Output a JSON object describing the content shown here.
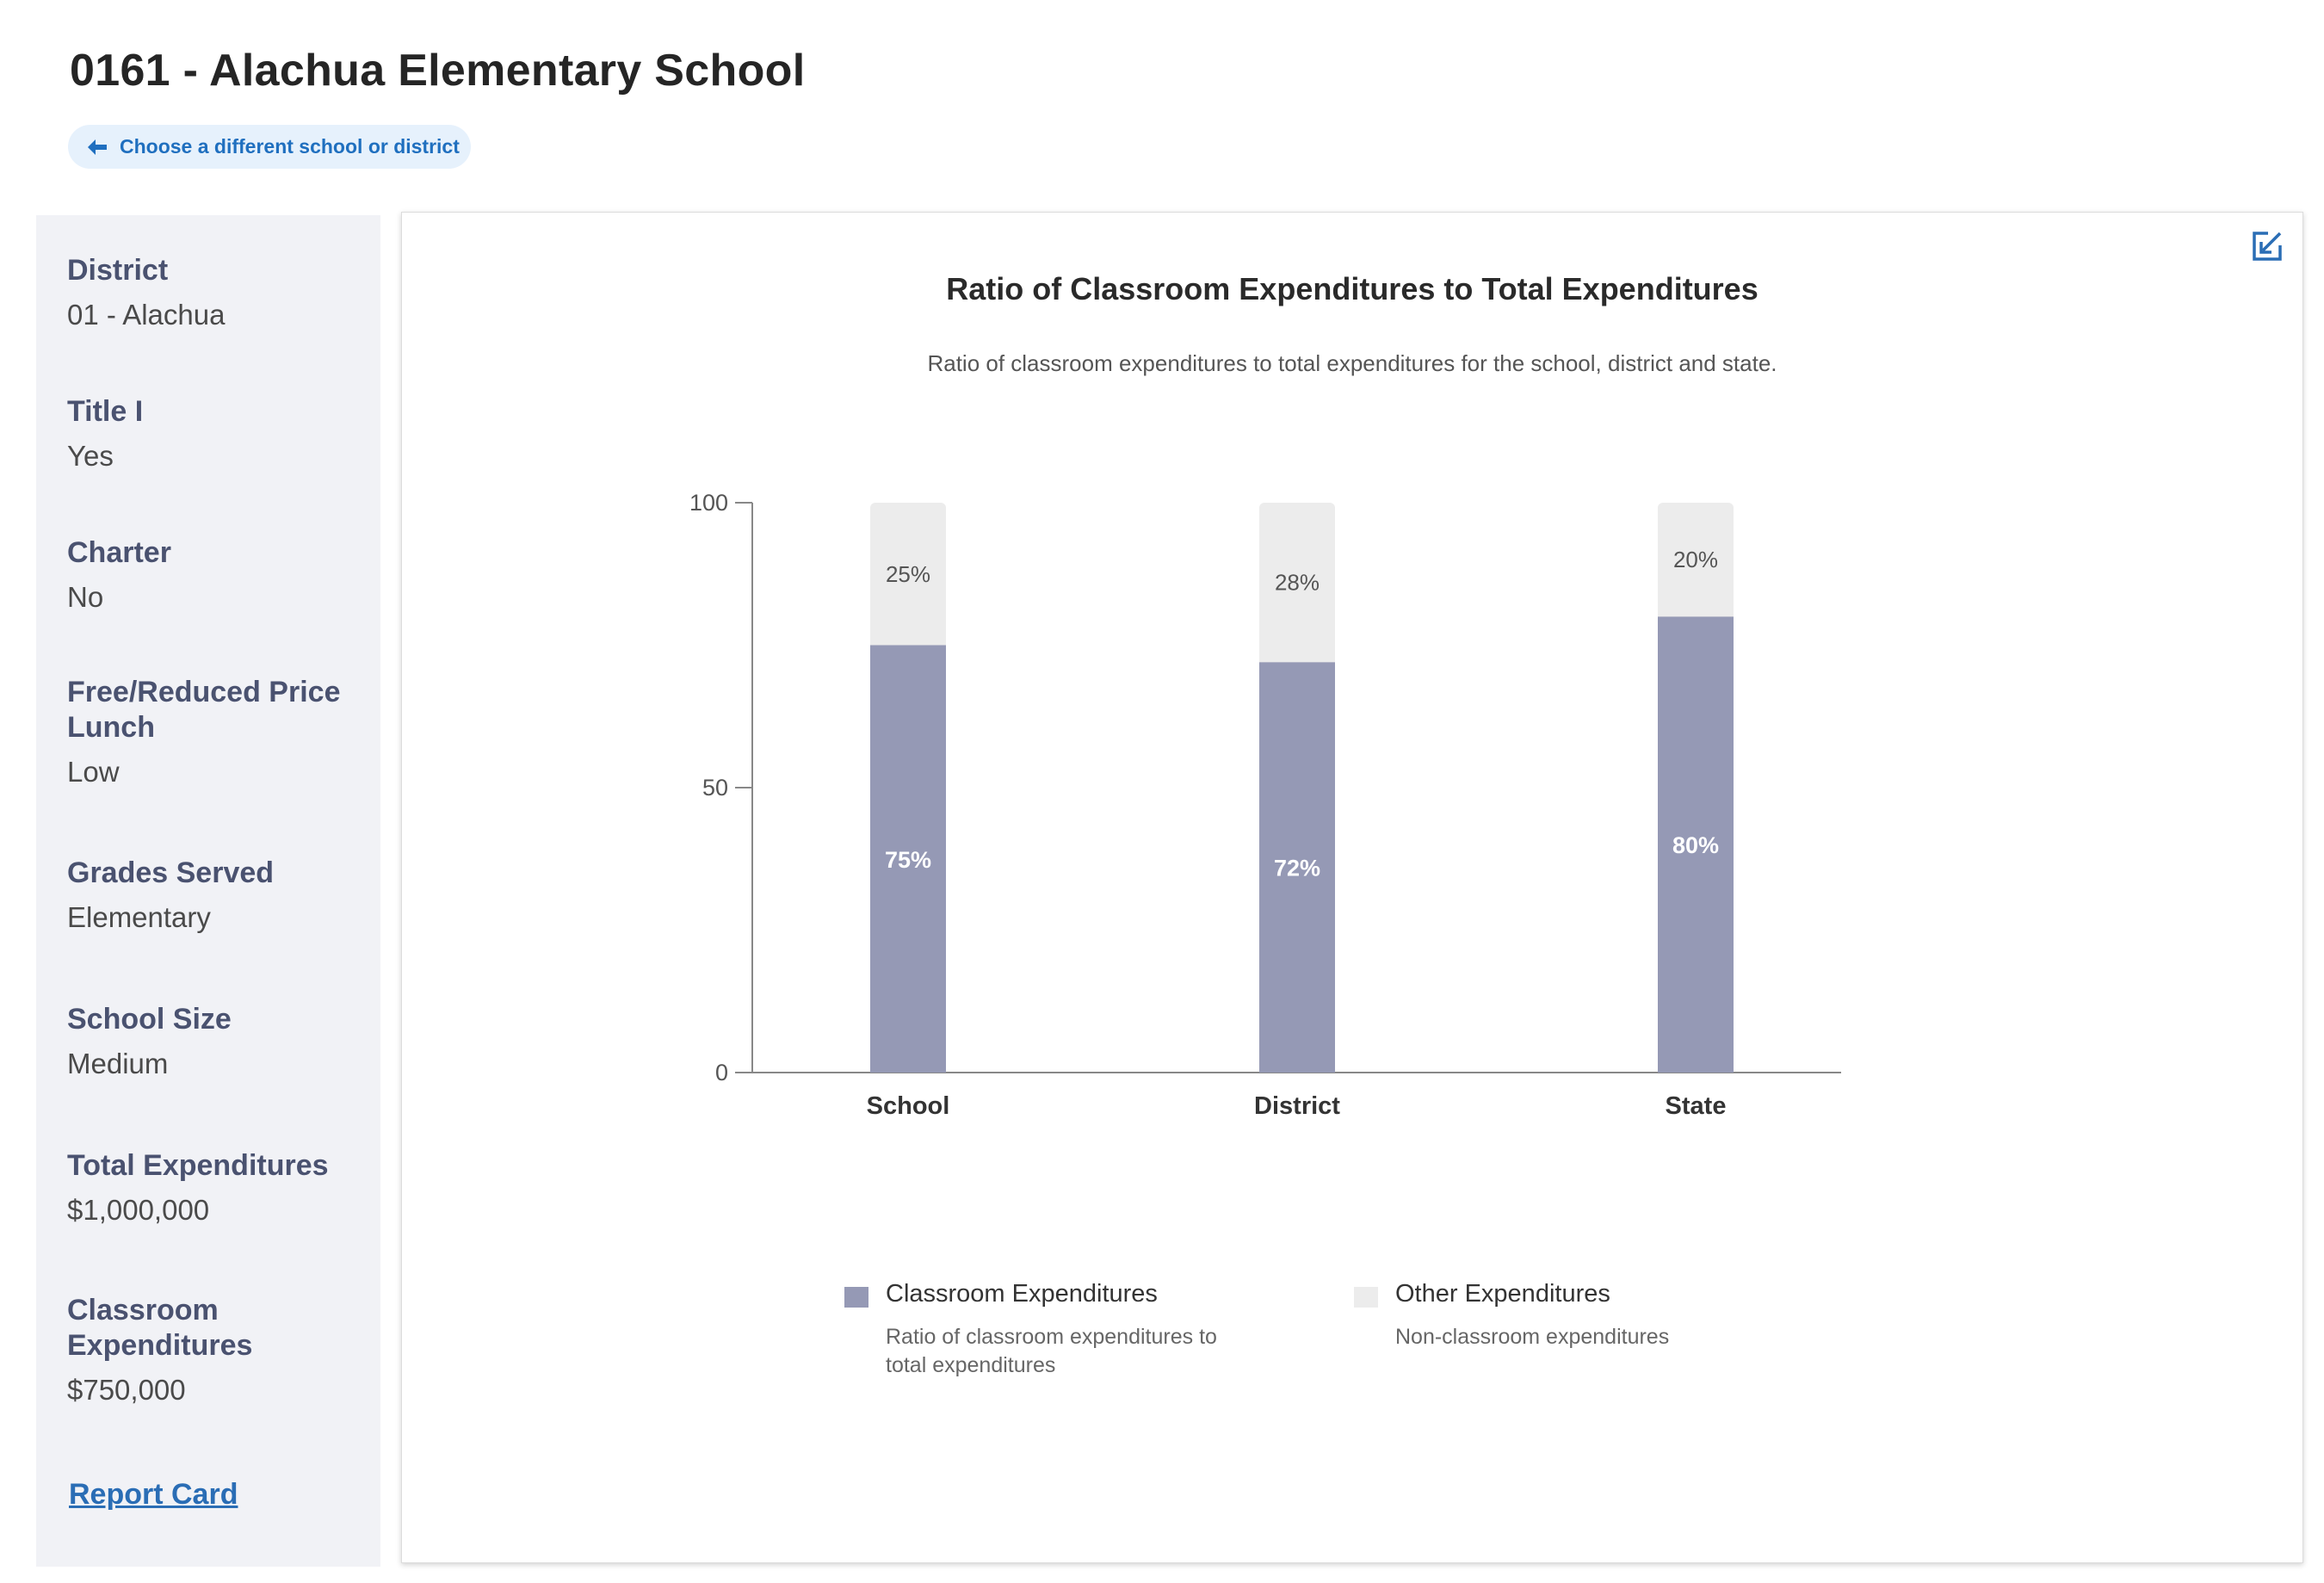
{
  "page": {
    "title": "0161 - Alachua Elementary School",
    "back_link": "Choose a different school or district"
  },
  "sidebar": {
    "items": [
      {
        "label": "District",
        "value": "01 - Alachua"
      },
      {
        "label": "Title I",
        "value": "Yes"
      },
      {
        "label": "Charter",
        "value": "No"
      },
      {
        "label": "Free/Reduced Price Lunch",
        "value": "Low"
      },
      {
        "label": "Grades Served",
        "value": "Elementary"
      },
      {
        "label": "School Size",
        "value": "Medium"
      },
      {
        "label": "Total Expenditures",
        "value": "$1,000,000"
      },
      {
        "label": "Classroom Expenditures",
        "value": "$750,000"
      }
    ],
    "report_card_link": "Report Card"
  },
  "colors": {
    "classroom": "#9599b5",
    "other": "#ececec",
    "axis": "#888888",
    "link": "#2a6db5"
  },
  "chart_data": {
    "type": "bar",
    "stacked": true,
    "title": "Ratio of Classroom Expenditures to Total Expenditures",
    "subtitle": "Ratio of classroom expenditures to total expenditures for the school, district and state.",
    "categories": [
      "School",
      "District",
      "State"
    ],
    "ylim": [
      0,
      100
    ],
    "yticks": [
      0,
      50,
      100
    ],
    "series": [
      {
        "name": "Classroom Expenditures",
        "description": "Ratio of classroom expenditures to total expenditures",
        "values": [
          75,
          72,
          80
        ],
        "labels": [
          "75%",
          "72%",
          "80%"
        ]
      },
      {
        "name": "Other Expenditures",
        "description": "Non-classroom expenditures",
        "values": [
          25,
          28,
          20
        ],
        "labels": [
          "25%",
          "28%",
          "20%"
        ]
      }
    ],
    "legend": "bottom",
    "grid": false
  }
}
